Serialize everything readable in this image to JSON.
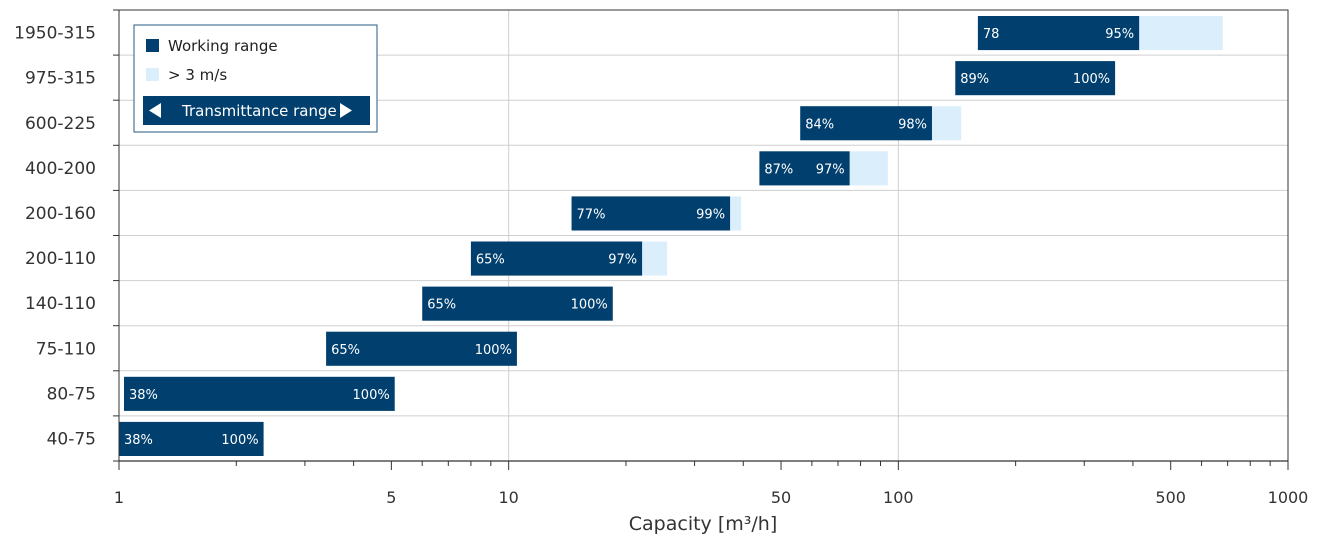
{
  "chart_data": {
    "type": "bar",
    "orientation": "horizontal",
    "x_scale": "log",
    "xlim": [
      1,
      1000
    ],
    "xlabel": "Capacity [m³/h]",
    "x_ticks": [
      "1",
      "5",
      "10",
      "50",
      "100",
      "500",
      "1000"
    ],
    "x_tick_values": [
      1,
      5,
      10,
      50,
      100,
      500,
      1000
    ],
    "grid": true,
    "legend_position": "top-left",
    "legend": {
      "working_label": "Working range",
      "fast_label": "> 3 m/s",
      "transmittance_label": "Transmittance range"
    },
    "colors": {
      "working": "#003f6e",
      "fast": "#dbeefc",
      "grid": "#cfcfcf",
      "axis": "#333333"
    },
    "categories": [
      "1950-315",
      "975-315",
      "600-225",
      "400-200",
      "200-160",
      "200-110",
      "140-110",
      "75-110",
      "80-75",
      "40-75"
    ],
    "series": [
      {
        "name": "Working range",
        "ranges": [
          [
            160,
            415
          ],
          [
            140,
            360
          ],
          [
            56,
            122
          ],
          [
            44,
            75
          ],
          [
            14.5,
            37
          ],
          [
            8,
            22
          ],
          [
            6,
            18.5
          ],
          [
            3.4,
            10.5
          ],
          [
            1.03,
            5.1
          ],
          [
            1,
            2.35
          ]
        ]
      },
      {
        "name": "> 3 m/s",
        "ranges": [
          [
            415,
            680
          ],
          null,
          [
            122,
            145
          ],
          [
            75,
            94
          ],
          [
            37,
            39.5
          ],
          [
            22,
            25.5
          ],
          null,
          null,
          null,
          null
        ]
      }
    ],
    "bar_labels": [
      [
        "78",
        "95%"
      ],
      [
        "89%",
        "100%"
      ],
      [
        "84%",
        "98%"
      ],
      [
        "87%",
        "97%"
      ],
      [
        "77%",
        "99%"
      ],
      [
        "65%",
        "97%"
      ],
      [
        "65%",
        "100%"
      ],
      [
        "65%",
        "100%"
      ],
      [
        "38%",
        "100%"
      ],
      [
        "38%",
        "100%"
      ]
    ]
  }
}
